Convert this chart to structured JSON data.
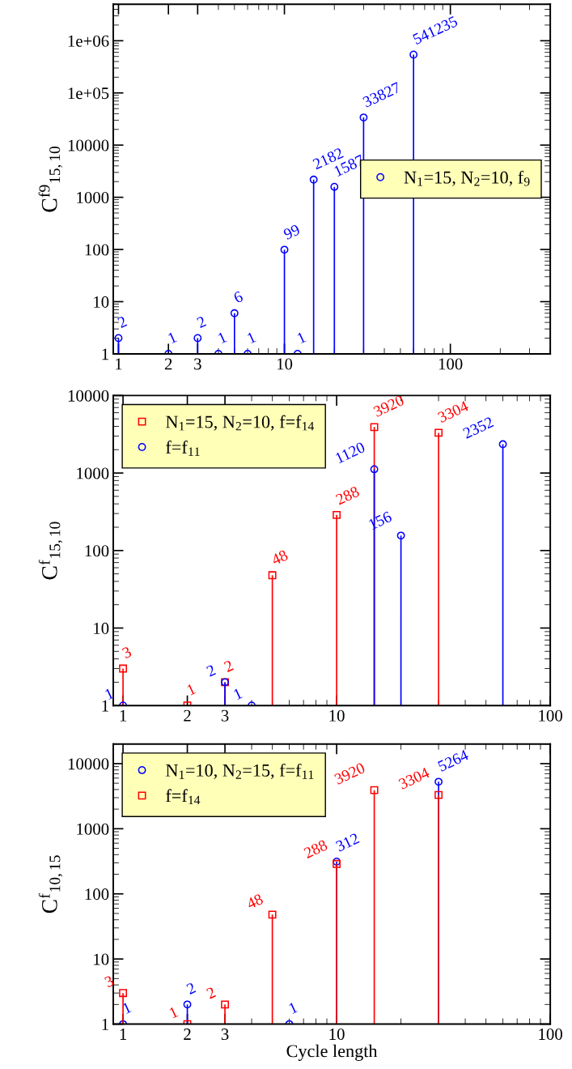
{
  "chart_data": [
    {
      "type": "lollipop",
      "ylabel": "C$^{f9}$$_{15,10}$",
      "log": "xy",
      "xlim": [
        0.93,
        400
      ],
      "ylim": [
        1,
        5000000
      ],
      "xticks": [
        1,
        2,
        3,
        10,
        100
      ],
      "yticks": [
        1,
        10,
        100,
        1000,
        10000,
        {
          "value": 100000,
          "label": "1e+05"
        },
        {
          "value": 1000000,
          "label": "1e+06"
        }
      ],
      "legend": "right",
      "data_labels": true,
      "grid": false,
      "series": [
        {
          "name": "N$_{1}$=15, N$_{2}$=10, f$_{9}$",
          "color": "#0000ff",
          "marker": "circle",
          "x": [
            1,
            2,
            3,
            4,
            5,
            6,
            10,
            12,
            15,
            20,
            30,
            60
          ],
          "values": [
            2,
            1,
            2,
            1,
            6,
            1,
            99,
            1,
            2182,
            1587,
            33827,
            541235
          ]
        }
      ]
    },
    {
      "type": "lollipop",
      "ylabel": "C$^{f}$$_{15,10}$",
      "log": "xy",
      "xlim": [
        0.9,
        100
      ],
      "ylim": [
        1,
        10000
      ],
      "xticks": [
        1,
        2,
        3,
        10,
        100
      ],
      "yticks": [
        1,
        10,
        100,
        1000,
        10000
      ],
      "legend": "top left",
      "data_labels": true,
      "grid": false,
      "series": [
        {
          "name": "N$_{1}$=15, N$_{2}$=10, f=f$_{14}$",
          "color": "#ff0000",
          "marker": "square",
          "x": [
            1,
            2,
            3,
            5,
            10,
            15,
            30
          ],
          "values": [
            3,
            1,
            2,
            48,
            288,
            3920,
            3304
          ]
        },
        {
          "name": "f=f$_{11}$",
          "color": "#0000ff",
          "marker": "circle",
          "x": [
            1,
            3,
            4,
            15,
            20,
            60
          ],
          "values": [
            1,
            2,
            1,
            1120,
            156,
            2352
          ]
        }
      ]
    },
    {
      "type": "lollipop",
      "ylabel": "C$^{f}$$_{10,15}$",
      "xlabel": "Cycle length",
      "log": "xy",
      "xlim": [
        0.9,
        100
      ],
      "ylim": [
        1,
        20000
      ],
      "xticks": [
        1,
        2,
        3,
        10,
        100
      ],
      "yticks": [
        1,
        10,
        100,
        1000,
        10000
      ],
      "legend": "top left",
      "data_labels": true,
      "grid": false,
      "series": [
        {
          "name": "N$_{1}$=10, N$_{2}$=15, f=f$_{11}$",
          "color": "#0000ff",
          "marker": "circle",
          "x": [
            1,
            2,
            6,
            10,
            30
          ],
          "values": [
            1,
            2,
            1,
            312,
            5264
          ]
        },
        {
          "name": "f=f$_{14}$",
          "color": "#ff0000",
          "marker": "square",
          "x": [
            1,
            2,
            3,
            5,
            10,
            15,
            30
          ],
          "values": [
            3,
            1,
            2,
            48,
            288,
            3920,
            3304
          ]
        }
      ]
    }
  ]
}
